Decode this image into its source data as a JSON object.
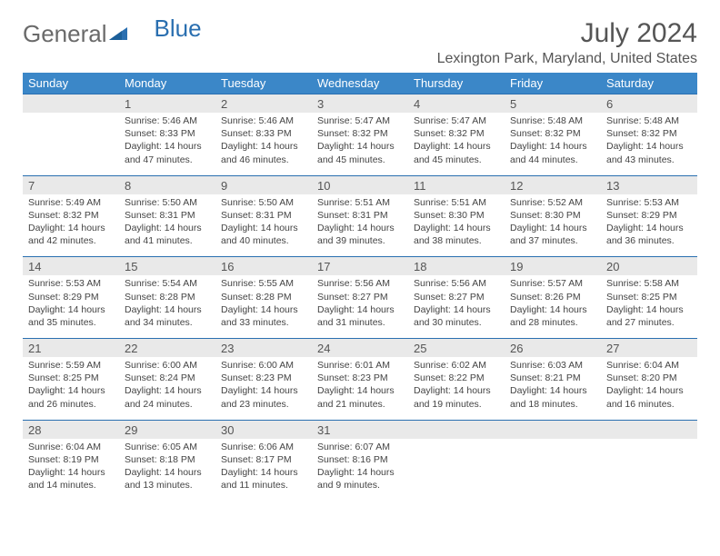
{
  "logo": {
    "word1": "General",
    "word2": "Blue"
  },
  "title": "July 2024",
  "location": "Lexington Park, Maryland, United States",
  "styling": {
    "header_bg": "#3b87c8",
    "header_fg": "#ffffff",
    "daynum_bg": "#e9e9e9",
    "daynum_fg": "#555555",
    "border_color": "#2a6fb0",
    "body_text": "#444444",
    "title_color": "#555555",
    "logo_gray": "#6a6a6a",
    "logo_blue": "#2a6fb0",
    "font_family": "Arial",
    "title_fontsize_pt": 22,
    "location_fontsize_pt": 12,
    "dow_fontsize_pt": 10,
    "cell_fontsize_pt": 8
  },
  "days_of_week": [
    "Sunday",
    "Monday",
    "Tuesday",
    "Wednesday",
    "Thursday",
    "Friday",
    "Saturday"
  ],
  "weeks": [
    {
      "nums": [
        "",
        "1",
        "2",
        "3",
        "4",
        "5",
        "6"
      ],
      "cells": [
        null,
        {
          "sunrise": "5:46 AM",
          "sunset": "8:33 PM",
          "daylight": "14 hours and 47 minutes."
        },
        {
          "sunrise": "5:46 AM",
          "sunset": "8:33 PM",
          "daylight": "14 hours and 46 minutes."
        },
        {
          "sunrise": "5:47 AM",
          "sunset": "8:32 PM",
          "daylight": "14 hours and 45 minutes."
        },
        {
          "sunrise": "5:47 AM",
          "sunset": "8:32 PM",
          "daylight": "14 hours and 45 minutes."
        },
        {
          "sunrise": "5:48 AM",
          "sunset": "8:32 PM",
          "daylight": "14 hours and 44 minutes."
        },
        {
          "sunrise": "5:48 AM",
          "sunset": "8:32 PM",
          "daylight": "14 hours and 43 minutes."
        }
      ]
    },
    {
      "nums": [
        "7",
        "8",
        "9",
        "10",
        "11",
        "12",
        "13"
      ],
      "cells": [
        {
          "sunrise": "5:49 AM",
          "sunset": "8:32 PM",
          "daylight": "14 hours and 42 minutes."
        },
        {
          "sunrise": "5:50 AM",
          "sunset": "8:31 PM",
          "daylight": "14 hours and 41 minutes."
        },
        {
          "sunrise": "5:50 AM",
          "sunset": "8:31 PM",
          "daylight": "14 hours and 40 minutes."
        },
        {
          "sunrise": "5:51 AM",
          "sunset": "8:31 PM",
          "daylight": "14 hours and 39 minutes."
        },
        {
          "sunrise": "5:51 AM",
          "sunset": "8:30 PM",
          "daylight": "14 hours and 38 minutes."
        },
        {
          "sunrise": "5:52 AM",
          "sunset": "8:30 PM",
          "daylight": "14 hours and 37 minutes."
        },
        {
          "sunrise": "5:53 AM",
          "sunset": "8:29 PM",
          "daylight": "14 hours and 36 minutes."
        }
      ]
    },
    {
      "nums": [
        "14",
        "15",
        "16",
        "17",
        "18",
        "19",
        "20"
      ],
      "cells": [
        {
          "sunrise": "5:53 AM",
          "sunset": "8:29 PM",
          "daylight": "14 hours and 35 minutes."
        },
        {
          "sunrise": "5:54 AM",
          "sunset": "8:28 PM",
          "daylight": "14 hours and 34 minutes."
        },
        {
          "sunrise": "5:55 AM",
          "sunset": "8:28 PM",
          "daylight": "14 hours and 33 minutes."
        },
        {
          "sunrise": "5:56 AM",
          "sunset": "8:27 PM",
          "daylight": "14 hours and 31 minutes."
        },
        {
          "sunrise": "5:56 AM",
          "sunset": "8:27 PM",
          "daylight": "14 hours and 30 minutes."
        },
        {
          "sunrise": "5:57 AM",
          "sunset": "8:26 PM",
          "daylight": "14 hours and 28 minutes."
        },
        {
          "sunrise": "5:58 AM",
          "sunset": "8:25 PM",
          "daylight": "14 hours and 27 minutes."
        }
      ]
    },
    {
      "nums": [
        "21",
        "22",
        "23",
        "24",
        "25",
        "26",
        "27"
      ],
      "cells": [
        {
          "sunrise": "5:59 AM",
          "sunset": "8:25 PM",
          "daylight": "14 hours and 26 minutes."
        },
        {
          "sunrise": "6:00 AM",
          "sunset": "8:24 PM",
          "daylight": "14 hours and 24 minutes."
        },
        {
          "sunrise": "6:00 AM",
          "sunset": "8:23 PM",
          "daylight": "14 hours and 23 minutes."
        },
        {
          "sunrise": "6:01 AM",
          "sunset": "8:23 PM",
          "daylight": "14 hours and 21 minutes."
        },
        {
          "sunrise": "6:02 AM",
          "sunset": "8:22 PM",
          "daylight": "14 hours and 19 minutes."
        },
        {
          "sunrise": "6:03 AM",
          "sunset": "8:21 PM",
          "daylight": "14 hours and 18 minutes."
        },
        {
          "sunrise": "6:04 AM",
          "sunset": "8:20 PM",
          "daylight": "14 hours and 16 minutes."
        }
      ]
    },
    {
      "nums": [
        "28",
        "29",
        "30",
        "31",
        "",
        "",
        ""
      ],
      "cells": [
        {
          "sunrise": "6:04 AM",
          "sunset": "8:19 PM",
          "daylight": "14 hours and 14 minutes."
        },
        {
          "sunrise": "6:05 AM",
          "sunset": "8:18 PM",
          "daylight": "14 hours and 13 minutes."
        },
        {
          "sunrise": "6:06 AM",
          "sunset": "8:17 PM",
          "daylight": "14 hours and 11 minutes."
        },
        {
          "sunrise": "6:07 AM",
          "sunset": "8:16 PM",
          "daylight": "14 hours and 9 minutes."
        },
        null,
        null,
        null
      ]
    }
  ],
  "labels": {
    "sunrise": "Sunrise:",
    "sunset": "Sunset:",
    "daylight": "Daylight:"
  }
}
